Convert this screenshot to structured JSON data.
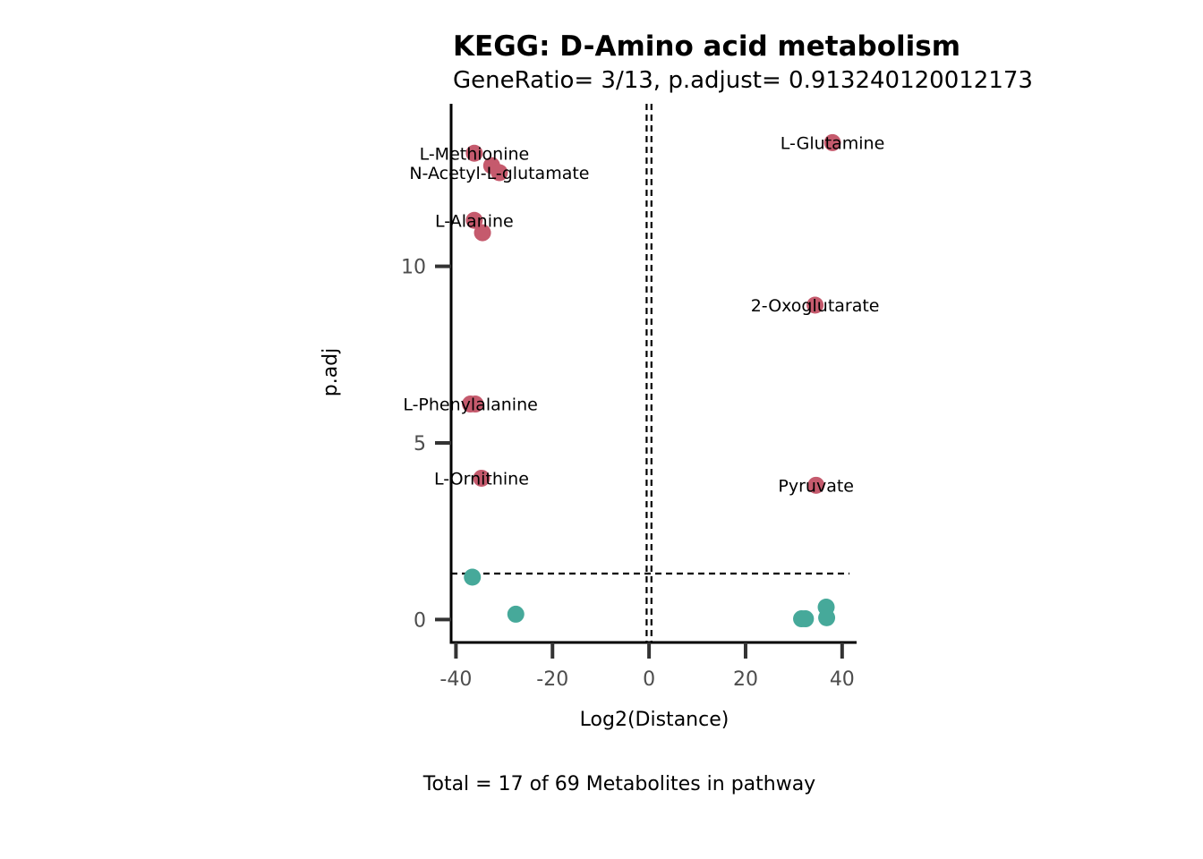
{
  "chart_data": {
    "type": "scatter",
    "title": "KEGG: D-Amino acid metabolism",
    "subtitle": "GeneRatio= 3/13, p.adjust= 0.913240120012173",
    "xlabel": "Log2(Distance)",
    "ylabel": "p.adj",
    "caption": "Total = 17 of 69 Metabolites in pathway",
    "xlim": [
      -41,
      43
    ],
    "ylim": [
      -0.65,
      14.6
    ],
    "x_ticks": [
      -40,
      -20,
      0,
      20,
      40
    ],
    "y_ticks": [
      0,
      5,
      10
    ],
    "vlines": [
      -0.5,
      0.5
    ],
    "hline": 1.3,
    "grid": false,
    "legend": "none",
    "colors": {
      "significant": "#c55a6d",
      "not_significant": "#46a99a",
      "reference_line": "#000000"
    },
    "series": [
      {
        "name": "",
        "color": "#c55a6d",
        "points": [
          {
            "x": -36.2,
            "y": 13.2,
            "label": "L-Methionine"
          },
          {
            "x": -32.6,
            "y": 12.85,
            "label": ""
          },
          {
            "x": -31.0,
            "y": 12.65,
            "label": "N-Acetyl-L-glutamate"
          },
          {
            "x": -36.2,
            "y": 11.3,
            "label": "L-Alanine"
          },
          {
            "x": -34.5,
            "y": 10.95,
            "label": ""
          },
          {
            "x": 38.0,
            "y": 13.5,
            "label": "L-Glutamine"
          },
          {
            "x": 34.4,
            "y": 8.9,
            "label": "2-Oxoglutarate"
          },
          {
            "x": -37.0,
            "y": 6.1,
            "label": "L-Phenylalanine"
          },
          {
            "x": -36.0,
            "y": 6.1,
            "label": ""
          },
          {
            "x": -34.7,
            "y": 4.0,
            "label": "L-Ornithine"
          },
          {
            "x": 34.6,
            "y": 3.8,
            "label": "Pyruvate"
          }
        ]
      },
      {
        "name": "",
        "color": "#46a99a",
        "points": [
          {
            "x": -36.6,
            "y": 1.2,
            "label": ""
          },
          {
            "x": -27.6,
            "y": 0.15,
            "label": ""
          },
          {
            "x": 31.6,
            "y": 0.02,
            "label": ""
          },
          {
            "x": 32.4,
            "y": 0.02,
            "label": ""
          },
          {
            "x": 36.7,
            "y": 0.35,
            "label": ""
          },
          {
            "x": 36.8,
            "y": 0.05,
            "label": ""
          }
        ]
      }
    ]
  }
}
